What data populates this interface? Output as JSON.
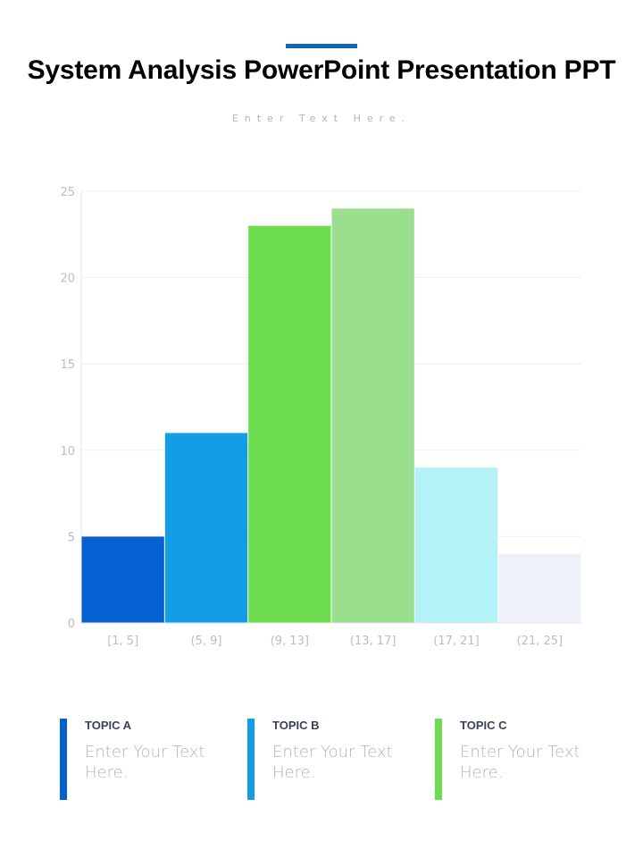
{
  "header": {
    "title": "System Analysis PowerPoint Presentation PPT",
    "subtitle": "Enter Text Here.",
    "accent_color": "#1565c0"
  },
  "chart_data": {
    "type": "bar",
    "categories": [
      "[1, 5]",
      "(5, 9]",
      "(9, 13]",
      "(13, 17]",
      "(17, 21]",
      "(21, 25]"
    ],
    "values": [
      5,
      11,
      23,
      24,
      9,
      4
    ],
    "bar_colors": [
      "#0561d2",
      "#139de4",
      "#6cdc4e",
      "#99df8e",
      "#b3f2f6",
      "#eef1f8"
    ],
    "yticks": [
      "0",
      "5",
      "10",
      "15",
      "20",
      "25"
    ],
    "ylim": [
      0,
      25
    ],
    "grid": true,
    "title": "",
    "xlabel": "",
    "ylabel": ""
  },
  "topics": [
    {
      "heading": "TOPIC A",
      "text": "Enter Your Text Here.",
      "color": "#0561d2"
    },
    {
      "heading": "TOPIC B",
      "text": "Enter Your Text Here.",
      "color": "#139de4"
    },
    {
      "heading": "TOPIC C",
      "text": "Enter Your Text Here.",
      "color": "#6cdc4e"
    }
  ]
}
